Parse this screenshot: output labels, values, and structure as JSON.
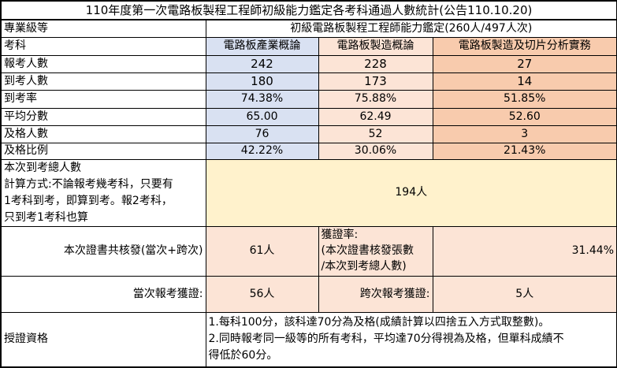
{
  "title": "110年度第一次電路板製程工程師初級能力鑑定各考科通過人數統計(公告110.10.20)",
  "level_label": "專業級等",
  "level_value": "初級電路板製程工程師能力鑑定(260人/497人次)",
  "subject_label": "考科",
  "subjects": [
    "電路板產業概論",
    "電路板製造概論",
    "電路板製造及切片分析實務"
  ],
  "rows": [
    {
      "label": "報考人數",
      "values": [
        "242",
        "228",
        "27"
      ]
    },
    {
      "label": "到考人數",
      "values": [
        "180",
        "173",
        "14"
      ]
    },
    {
      "label": "到考率",
      "values": [
        "74.38%",
        "75.88%",
        "51.85%"
      ]
    },
    {
      "label": "平均分數",
      "values": [
        "65.00",
        "62.49",
        "52.60"
      ]
    },
    {
      "label": "及格人數",
      "values": [
        "76",
        "52",
        "3"
      ]
    },
    {
      "label": "及格比例",
      "values": [
        "42.22%",
        "30.06%",
        "21.43%"
      ]
    }
  ],
  "total_attendees": {
    "label_lines": [
      "本次到考總人數",
      "計算方式:不論報考幾考科，只要有",
      "1考科到考，即算到考。報2考科，",
      "只到考1考科也算"
    ],
    "value": "194人"
  },
  "certificates": {
    "label": "本次證書共核發(當次+跨次)",
    "value": "61人",
    "rate_label_lines": [
      "獲證率:",
      "(本次證書核發張數",
      "/本次到考總人數)"
    ],
    "rate_value": "31.44%"
  },
  "current_session": {
    "label": "當次報考獲證:",
    "value": "56人"
  },
  "cross_session": {
    "label": "跨次報考獲證:",
    "value": "5人"
  },
  "qualification": {
    "label": "授證資格",
    "lines": [
      "1.每科100分，該科達70分為及格(成績計算以四捨五入方式取整數)。",
      "2.同時報考同一級等的所有考科，平均達70分得視為及格，但單科成績不",
      "得低於60分。"
    ]
  },
  "colors": {
    "col1": "#d9e1f2",
    "col2": "#fce4d6",
    "col3": "#f8cbad",
    "total": "#fff2cc"
  }
}
